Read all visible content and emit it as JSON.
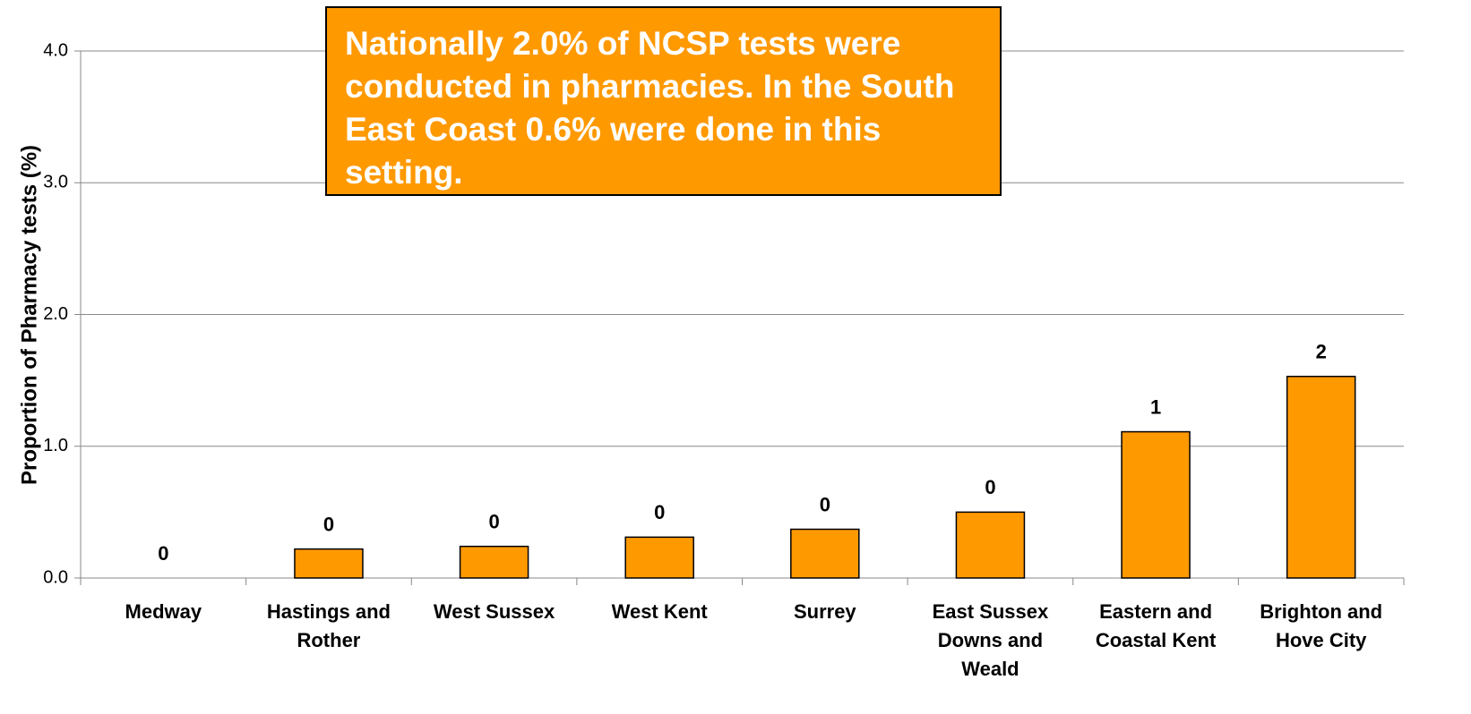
{
  "chart_data": {
    "type": "bar",
    "annotation": "Nationally  2.0% of NCSP tests were conducted in pharmacies. In the South East Coast 0.6% were done in this setting.",
    "y_label": "Proportion of Pharmacy tests (%)",
    "categories": [
      "Medway",
      "Hastings and Rother",
      "West Sussex",
      "West Kent",
      "Surrey",
      "East Sussex Downs and Weald",
      "Eastern and Coastal Kent",
      "Brighton and Hove City"
    ],
    "values": [
      0,
      0.22,
      0.24,
      0.31,
      0.37,
      0.5,
      1.11,
      1.53
    ],
    "value_labels": [
      "0",
      "0",
      "0",
      "0",
      "0",
      "0",
      "1",
      "2"
    ],
    "color": "#ff9900",
    "ylim": [
      0,
      4
    ],
    "yticks": [
      {
        "value": 0,
        "label": "0.0"
      },
      {
        "value": 1,
        "label": "1.0"
      },
      {
        "value": 2,
        "label": "2.0"
      },
      {
        "value": 3,
        "label": "3.0"
      },
      {
        "value": 4,
        "label": "4.0"
      }
    ],
    "grid": true
  }
}
